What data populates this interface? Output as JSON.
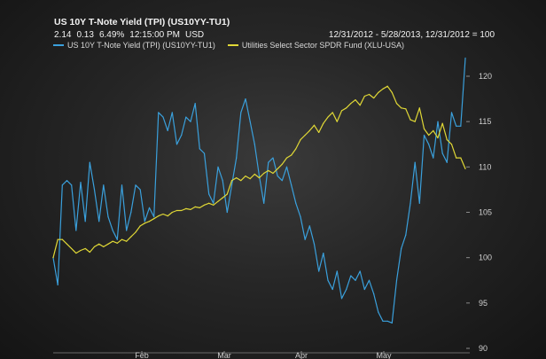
{
  "header": {
    "title": "US 10Y T-Note Yield (TPI) (US10YY-TU1)",
    "quote": [
      "2.14",
      "0.13",
      "6.49%",
      "12:15:00 PM",
      "USD"
    ],
    "range_text": "12/31/2012 - 5/28/2013, 12/31/2012 = 100"
  },
  "chart_data": {
    "type": "line",
    "title": "US 10Y T-Note Yield (TPI) (US10YY-TU1)",
    "xlabel": "",
    "ylabel": "",
    "x_ticks": [
      "Feb",
      "Mar",
      "Apr",
      "May"
    ],
    "y_ticks": [
      90,
      95,
      100,
      105,
      110,
      115,
      120
    ],
    "ylim": [
      90,
      122
    ],
    "y_axis_side": "right",
    "grid": false,
    "legend": "top-left",
    "series": [
      {
        "name": "US 10Y T-Note Yield (TPI) (US10YY-TU1)",
        "color": "#3aa0dc",
        "values": [
          100,
          97,
          108,
          108.5,
          108,
          103,
          108.3,
          104,
          110.5,
          107.5,
          104,
          108,
          104.5,
          103,
          102,
          108,
          103,
          105,
          108,
          107.5,
          104,
          105.5,
          104.5,
          116,
          115.5,
          114,
          116,
          112.5,
          113.5,
          115.5,
          115,
          117,
          112,
          111.5,
          107,
          106,
          110,
          108.5,
          105,
          108,
          111,
          116,
          117.5,
          115,
          112.5,
          109,
          106,
          110.5,
          111,
          109,
          108.5,
          110,
          108,
          106,
          104.5,
          102,
          103.5,
          101.5,
          98.5,
          100.5,
          97.5,
          96.5,
          98.5,
          95.5,
          96.5,
          98,
          97.5,
          98.5,
          96.5,
          97.5,
          96,
          94,
          93,
          93,
          92.8,
          97.5,
          101,
          102.5,
          106,
          110.5,
          106,
          113.5,
          112.5,
          111,
          115,
          111.5,
          110.5,
          116,
          114.5,
          114.5,
          122
        ]
      },
      {
        "name": "Utilities Select Sector SPDR Fund (XLU-USA)",
        "color": "#e0d836",
        "values": [
          100,
          102,
          102,
          101.5,
          101,
          100.5,
          100.8,
          101,
          100.6,
          101.2,
          101.5,
          101.2,
          101.5,
          101.8,
          101.6,
          102,
          101.8,
          102.3,
          102.8,
          103.5,
          103.8,
          104,
          104.3,
          104.6,
          104.8,
          104.6,
          105,
          105.2,
          105.2,
          105.4,
          105.3,
          105.6,
          105.5,
          105.8,
          106,
          105.8,
          106.2,
          106.6,
          107,
          108.5,
          108.8,
          108.5,
          109,
          108.7,
          109.2,
          108.8,
          109.3,
          109.6,
          109.3,
          109.8,
          110.3,
          111,
          111.3,
          112,
          113,
          113.5,
          114,
          114.6,
          113.8,
          114.8,
          115.5,
          116,
          115,
          116.2,
          116.5,
          117,
          117.4,
          116.8,
          117.8,
          118,
          117.6,
          118.2,
          118.6,
          118.9,
          118.2,
          117,
          116.5,
          116.4,
          115.2,
          115,
          116.5,
          114.2,
          113.5,
          114,
          113.2,
          114.8,
          113,
          112.5,
          111,
          111,
          109.8
        ]
      }
    ]
  }
}
